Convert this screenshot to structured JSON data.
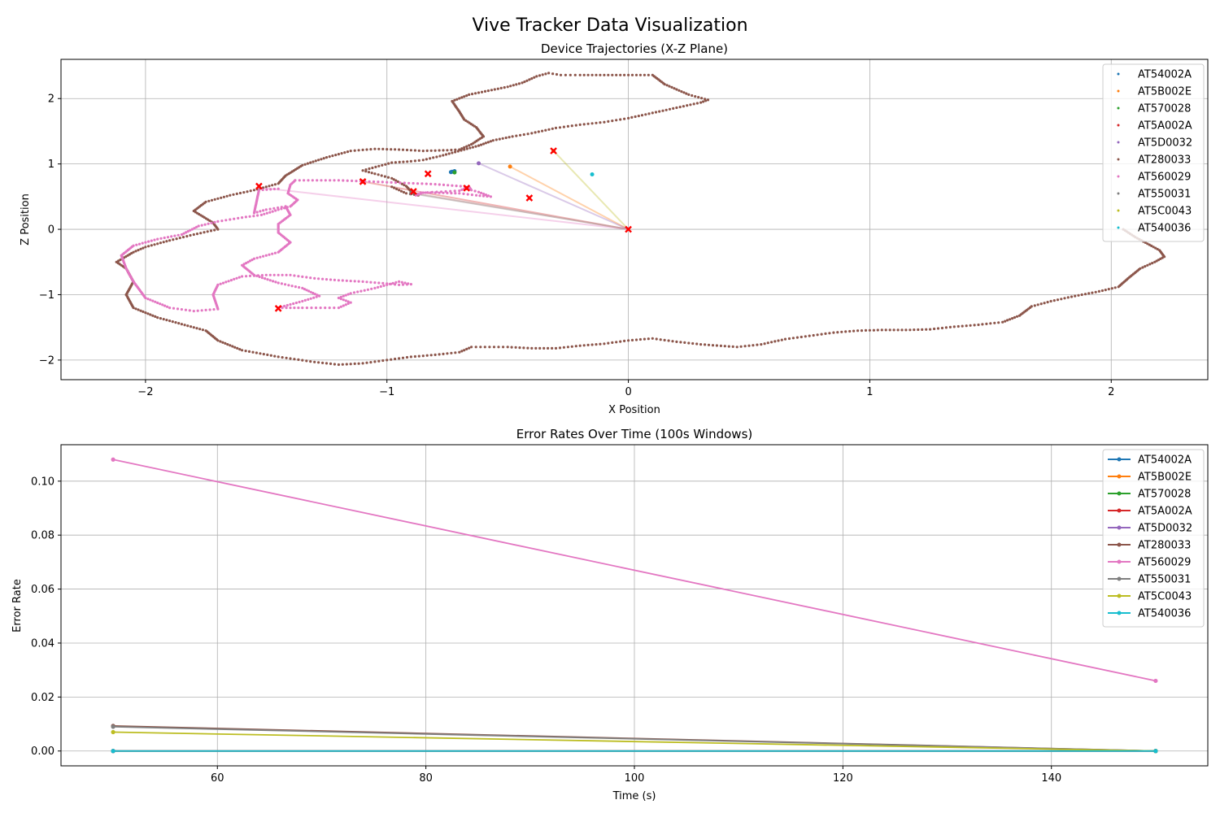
{
  "figure": {
    "suptitle": "Vive Tracker Data Visualization"
  },
  "legend_entries": [
    "AT54002A",
    "AT5B002E",
    "AT570028",
    "AT5A002A",
    "AT5D0032",
    "AT280033",
    "AT560029",
    "AT550031",
    "AT5C0043",
    "AT540036"
  ],
  "colors": [
    "#1f77b4",
    "#ff7f0e",
    "#2ca02c",
    "#d62728",
    "#9467bd",
    "#8c564b",
    "#e377c2",
    "#7f7f7f",
    "#bcbd22",
    "#17becf"
  ],
  "chart_data": [
    {
      "type": "scatter",
      "title": "Device Trajectories (X-Z Plane)",
      "xlabel": "X Position",
      "ylabel": "Z Position",
      "xlim": [
        -2.35,
        2.4
      ],
      "ylim": [
        -2.3,
        2.6
      ],
      "xticks": [
        -2,
        -1,
        0,
        1,
        2
      ],
      "xtick_labels": [
        "−2",
        "−1",
        "0",
        "1",
        "2"
      ],
      "yticks": [
        -2,
        -1,
        0,
        1,
        2
      ],
      "ytick_labels": [
        "−2",
        "−1",
        "0",
        "1",
        "2"
      ],
      "grid": true,
      "legend_placement": "top-right",
      "series": [
        {
          "name": "AT54002A",
          "points": [
            [
              -0.73,
              0.88
            ],
            [
              -0.72,
              0.89
            ],
            [
              -0.735,
              0.875
            ]
          ]
        },
        {
          "name": "AT5B002E",
          "points": [
            [
              -0.49,
              0.96
            ],
            [
              0,
              0
            ]
          ]
        },
        {
          "name": "AT570028",
          "points": [
            [
              -0.72,
              0.87
            ]
          ]
        },
        {
          "name": "AT5A002A",
          "points": [
            [
              -1.1,
              0.73
            ],
            [
              -0.67,
              0.63
            ],
            [
              0,
              0
            ]
          ]
        },
        {
          "name": "AT5D0032",
          "points": [
            [
              -0.62,
              1.01
            ],
            [
              0,
              0
            ]
          ]
        },
        {
          "name": "AT280033",
          "path": [
            [
              -2.12,
              -0.5
            ],
            [
              -2.05,
              -0.35
            ],
            [
              -2.0,
              -0.27
            ],
            [
              -1.9,
              -0.17
            ],
            [
              -1.8,
              -0.08
            ],
            [
              -1.7,
              0.0
            ],
            [
              -1.72,
              0.1
            ],
            [
              -1.8,
              0.28
            ],
            [
              -1.75,
              0.42
            ],
            [
              -1.65,
              0.52
            ],
            [
              -1.55,
              0.6
            ],
            [
              -1.45,
              0.7
            ],
            [
              -1.42,
              0.82
            ],
            [
              -1.35,
              0.98
            ],
            [
              -1.25,
              1.1
            ],
            [
              -1.15,
              1.2
            ],
            [
              -1.05,
              1.23
            ],
            [
              -0.95,
              1.22
            ],
            [
              -0.85,
              1.2
            ],
            [
              -0.75,
              1.21
            ],
            [
              -0.7,
              1.22
            ],
            [
              -0.65,
              1.3
            ],
            [
              -0.6,
              1.42
            ],
            [
              -0.63,
              1.56
            ],
            [
              -0.68,
              1.68
            ],
            [
              -0.7,
              1.8
            ],
            [
              -0.73,
              1.96
            ],
            [
              -0.66,
              2.06
            ],
            [
              -0.58,
              2.12
            ],
            [
              -0.5,
              2.18
            ],
            [
              -0.44,
              2.24
            ],
            [
              -0.38,
              2.34
            ],
            [
              -0.33,
              2.39
            ],
            [
              -0.28,
              2.36
            ],
            [
              -0.2,
              2.36
            ],
            [
              -0.1,
              2.36
            ],
            [
              0.0,
              2.36
            ],
            [
              0.1,
              2.36
            ],
            [
              0.15,
              2.22
            ],
            [
              0.25,
              2.06
            ],
            [
              0.33,
              1.98
            ],
            [
              0.3,
              1.94
            ],
            [
              0.2,
              1.86
            ],
            [
              0.1,
              1.78
            ],
            [
              0.0,
              1.7
            ],
            [
              -0.1,
              1.64
            ],
            [
              -0.2,
              1.6
            ],
            [
              -0.3,
              1.55
            ],
            [
              -0.4,
              1.47
            ],
            [
              -0.48,
              1.42
            ],
            [
              -0.56,
              1.36
            ],
            [
              -0.62,
              1.28
            ],
            [
              -0.68,
              1.22
            ],
            [
              -0.78,
              1.12
            ],
            [
              -0.85,
              1.06
            ],
            [
              -0.9,
              1.04
            ],
            [
              -0.98,
              1.02
            ],
            [
              -1.1,
              0.9
            ],
            [
              -1.05,
              0.85
            ],
            [
              -0.98,
              0.78
            ],
            [
              -0.92,
              0.66
            ],
            [
              -0.9,
              0.58
            ],
            [
              -0.87,
              0.52
            ],
            [
              -0.92,
              0.55
            ],
            [
              -0.95,
              0.6
            ],
            [
              -0.98,
              0.65
            ]
          ],
          "path2": [
            [
              -2.12,
              -0.5
            ],
            [
              -2.08,
              -0.6
            ],
            [
              -2.05,
              -0.8
            ],
            [
              -2.08,
              -1.0
            ],
            [
              -2.05,
              -1.2
            ],
            [
              -1.95,
              -1.35
            ],
            [
              -1.85,
              -1.45
            ],
            [
              -1.75,
              -1.55
            ],
            [
              -1.7,
              -1.7
            ],
            [
              -1.6,
              -1.85
            ],
            [
              -1.45,
              -1.95
            ],
            [
              -1.3,
              -2.03
            ],
            [
              -1.2,
              -2.07
            ],
            [
              -1.1,
              -2.05
            ],
            [
              -1.0,
              -2.0
            ],
            [
              -0.9,
              -1.95
            ],
            [
              -0.8,
              -1.92
            ],
            [
              -0.7,
              -1.88
            ],
            [
              -0.65,
              -1.8
            ],
            [
              -0.5,
              -1.8
            ],
            [
              -0.4,
              -1.82
            ],
            [
              -0.3,
              -1.82
            ],
            [
              -0.2,
              -1.78
            ],
            [
              -0.1,
              -1.75
            ],
            [
              0.0,
              -1.7
            ],
            [
              0.1,
              -1.67
            ],
            [
              0.2,
              -1.72
            ],
            [
              0.3,
              -1.76
            ],
            [
              0.45,
              -1.8
            ],
            [
              0.55,
              -1.76
            ],
            [
              0.65,
              -1.68
            ],
            [
              0.75,
              -1.63
            ],
            [
              0.85,
              -1.58
            ],
            [
              0.95,
              -1.55
            ],
            [
              1.05,
              -1.54
            ],
            [
              1.15,
              -1.54
            ],
            [
              1.25,
              -1.53
            ],
            [
              1.35,
              -1.49
            ],
            [
              1.45,
              -1.46
            ],
            [
              1.55,
              -1.42
            ],
            [
              1.62,
              -1.32
            ],
            [
              1.67,
              -1.18
            ],
            [
              1.75,
              -1.1
            ],
            [
              1.85,
              -1.02
            ],
            [
              1.95,
              -0.95
            ],
            [
              2.03,
              -0.88
            ],
            [
              2.07,
              -0.75
            ],
            [
              2.12,
              -0.6
            ],
            [
              2.18,
              -0.5
            ],
            [
              2.22,
              -0.42
            ],
            [
              2.2,
              -0.32
            ],
            [
              2.15,
              -0.22
            ],
            [
              2.1,
              -0.12
            ],
            [
              2.05,
              0.0
            ]
          ]
        },
        {
          "name": "AT560029",
          "path": [
            [
              -1.38,
              0.75
            ],
            [
              -1.2,
              0.75
            ],
            [
              -1.0,
              0.72
            ],
            [
              -0.8,
              0.69
            ],
            [
              -0.66,
              0.65
            ],
            [
              -0.65,
              0.6
            ],
            [
              -0.62,
              0.57
            ],
            [
              -0.57,
              0.5
            ],
            [
              -0.63,
              0.52
            ],
            [
              -0.7,
              0.55
            ],
            [
              -0.8,
              0.56
            ],
            [
              -0.86,
              0.56
            ],
            [
              -0.88,
              0.52
            ],
            [
              -0.85,
              0.56
            ],
            [
              -0.7,
              0.59
            ],
            [
              -0.68,
              0.62
            ]
          ],
          "path2": [
            [
              -1.38,
              0.75
            ],
            [
              -1.4,
              0.68
            ],
            [
              -1.41,
              0.55
            ],
            [
              -1.37,
              0.45
            ],
            [
              -1.4,
              0.35
            ],
            [
              -1.45,
              0.3
            ],
            [
              -1.52,
              0.22
            ],
            [
              -1.6,
              0.18
            ],
            [
              -1.7,
              0.12
            ],
            [
              -1.78,
              0.05
            ],
            [
              -1.85,
              -0.08
            ],
            [
              -1.95,
              -0.15
            ],
            [
              -2.05,
              -0.25
            ],
            [
              -2.1,
              -0.4
            ],
            [
              -2.08,
              -0.6
            ],
            [
              -2.05,
              -0.8
            ],
            [
              -2.0,
              -1.05
            ],
            [
              -1.9,
              -1.2
            ],
            [
              -1.8,
              -1.25
            ],
            [
              -1.7,
              -1.22
            ],
            [
              -1.72,
              -1.0
            ],
            [
              -1.7,
              -0.85
            ],
            [
              -1.6,
              -0.72
            ],
            [
              -1.5,
              -0.7
            ],
            [
              -1.4,
              -0.7
            ],
            [
              -1.3,
              -0.75
            ],
            [
              -1.2,
              -0.78
            ],
            [
              -1.1,
              -0.8
            ],
            [
              -1.0,
              -0.83
            ],
            [
              -0.95,
              -0.85
            ],
            [
              -0.9,
              -0.84
            ],
            [
              -0.95,
              -0.8
            ],
            [
              -1.0,
              -0.85
            ],
            [
              -1.05,
              -0.9
            ],
            [
              -1.15,
              -0.98
            ],
            [
              -1.2,
              -1.05
            ],
            [
              -1.15,
              -1.12
            ],
            [
              -1.2,
              -1.2
            ],
            [
              -1.35,
              -1.2
            ],
            [
              -1.45,
              -1.2
            ],
            [
              -1.35,
              -1.1
            ],
            [
              -1.28,
              -1.02
            ],
            [
              -1.35,
              -0.9
            ],
            [
              -1.45,
              -0.82
            ],
            [
              -1.55,
              -0.7
            ],
            [
              -1.6,
              -0.55
            ],
            [
              -1.55,
              -0.45
            ],
            [
              -1.45,
              -0.35
            ],
            [
              -1.4,
              -0.2
            ],
            [
              -1.45,
              -0.05
            ],
            [
              -1.45,
              0.08
            ],
            [
              -1.4,
              0.22
            ],
            [
              -1.42,
              0.35
            ],
            [
              -1.5,
              0.3
            ],
            [
              -1.55,
              0.25
            ],
            [
              -1.53,
              0.6
            ],
            [
              -1.45,
              0.62
            ]
          ]
        },
        {
          "name": "AT550031",
          "points": [
            [
              -0.9,
              0.55
            ],
            [
              0,
              0
            ]
          ]
        },
        {
          "name": "AT5C0043",
          "points": [
            [
              -0.31,
              1.2
            ],
            [
              0,
              0
            ]
          ]
        },
        {
          "name": "AT540036",
          "points": [
            [
              -0.15,
              0.84
            ]
          ]
        }
      ],
      "markers": [
        [
          -1.53,
          0.66
        ],
        [
          -1.45,
          -1.21
        ],
        [
          -1.1,
          0.73
        ],
        [
          -0.89,
          0.58
        ],
        [
          -0.83,
          0.85
        ],
        [
          -0.67,
          0.63
        ],
        [
          -0.41,
          0.48
        ],
        [
          -0.31,
          1.2
        ],
        [
          0.0,
          0.0
        ]
      ]
    },
    {
      "type": "line",
      "title": "Error Rates Over Time (100s Windows)",
      "xlabel": "Time (s)",
      "ylabel": "Error Rate",
      "x": [
        50,
        150
      ],
      "xlim": [
        45,
        155
      ],
      "ylim": [
        -0.0055,
        0.1135
      ],
      "xticks": [
        60,
        80,
        100,
        120,
        140
      ],
      "xtick_labels": [
        "60",
        "80",
        "100",
        "120",
        "140"
      ],
      "yticks": [
        0.0,
        0.02,
        0.04,
        0.06,
        0.08,
        0.1
      ],
      "ytick_labels": [
        "0.00",
        "0.02",
        "0.04",
        "0.06",
        "0.08",
        "0.10"
      ],
      "grid": true,
      "legend_placement": "top-right",
      "series": [
        {
          "name": "AT54002A",
          "values": [
            0.0,
            0.0
          ]
        },
        {
          "name": "AT5B002E",
          "values": [
            0.0,
            0.0
          ]
        },
        {
          "name": "AT570028",
          "values": [
            0.0,
            0.0
          ]
        },
        {
          "name": "AT5A002A",
          "values": [
            0.0,
            0.0
          ]
        },
        {
          "name": "AT5D0032",
          "values": [
            0.0,
            0.0
          ]
        },
        {
          "name": "AT280033",
          "values": [
            0.0093,
            0.0
          ]
        },
        {
          "name": "AT560029",
          "values": [
            0.108,
            0.026
          ]
        },
        {
          "name": "AT550031",
          "values": [
            0.009,
            0.0
          ]
        },
        {
          "name": "AT5C0043",
          "values": [
            0.007,
            0.0
          ]
        },
        {
          "name": "AT540036",
          "values": [
            0.0,
            0.0
          ]
        }
      ]
    }
  ]
}
